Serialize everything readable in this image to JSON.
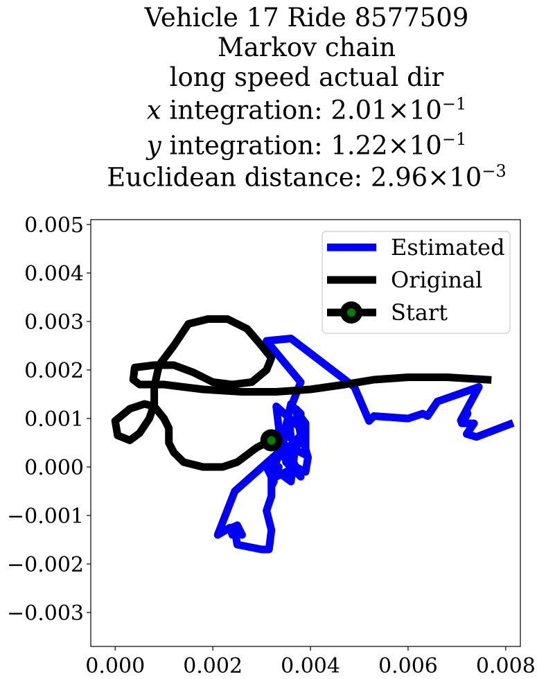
{
  "chart_data": {
    "type": "line",
    "title_lines": [
      "Vehicle 17 Ride 8577509",
      "Markov chain",
      "long speed actual dir",
      "x integration: 2.01 × 10^-1",
      "y integration: 1.22 × 10^-1",
      "Euclidean distance: 2.96 × 10^-3"
    ],
    "title": {
      "line1": "Vehicle 17 Ride 8577509",
      "line2": "Markov chain",
      "line3": "long speed actual dir",
      "line4_var": "x",
      "line4_text": " integration: 2.01",
      "line4_times": "×",
      "line4_base": "10",
      "line4_exp": "−1",
      "line5_var": "y",
      "line5_text": " integration: 1.22",
      "line5_times": "×",
      "line5_base": "10",
      "line5_exp": "−1",
      "line6_text": "Euclidean distance: 2.96",
      "line6_times": "×",
      "line6_base": "10",
      "line6_exp": "−3"
    },
    "xlim": [
      -0.0005,
      0.0083
    ],
    "ylim": [
      -0.0037,
      0.0051
    ],
    "x_ticks": [
      0.0,
      0.002,
      0.004,
      0.006,
      0.008
    ],
    "x_tick_labels": [
      "0.000",
      "0.002",
      "0.004",
      "0.006",
      "0.008"
    ],
    "y_ticks": [
      0.005,
      0.004,
      0.003,
      0.002,
      0.001,
      0.0,
      -0.001,
      -0.002,
      -0.003
    ],
    "y_tick_labels": [
      "0.005",
      "0.004",
      "0.003",
      "0.002",
      "0.001",
      "0.000",
      "−0.001",
      "−0.002",
      "−0.003"
    ],
    "grid": false,
    "legend_position": "top-right",
    "series": [
      {
        "name": "Estimated",
        "color": "#0000ff",
        "points": [
          [
            0.00808,
            0.00088
          ],
          [
            0.0074,
            0.00062
          ],
          [
            0.0072,
            0.00068
          ],
          [
            0.00735,
            0.0009
          ],
          [
            0.0071,
            0.0009
          ],
          [
            0.00722,
            0.0011
          ],
          [
            0.00708,
            0.00096
          ],
          [
            0.00745,
            0.00165
          ],
          [
            0.0066,
            0.00135
          ],
          [
            0.0064,
            0.00105
          ],
          [
            0.0063,
            0.0011
          ],
          [
            0.006,
            0.001
          ],
          [
            0.0053,
            0.00105
          ],
          [
            0.0052,
            0.00095
          ],
          [
            0.0049,
            0.00165
          ],
          [
            0.0036,
            0.00265
          ],
          [
            0.0031,
            0.0026
          ],
          [
            0.0038,
            0.00175
          ],
          [
            0.00355,
            0.0011
          ],
          [
            0.0036,
            0.0006
          ],
          [
            0.0034,
            0.00065
          ],
          [
            0.0033,
            0.00015
          ],
          [
            0.0038,
            0.00065
          ],
          [
            0.0037,
            0.0012
          ],
          [
            0.0038,
            0.0011
          ],
          [
            0.0038,
            0.0008
          ],
          [
            0.0033,
            0.00125
          ],
          [
            0.0034,
            0.0004
          ],
          [
            0.0036,
            0.0013
          ],
          [
            0.0039,
            0.0009
          ],
          [
            0.0039,
            0.00025
          ],
          [
            0.0037,
            0.00035
          ],
          [
            0.0038,
            0.0007
          ],
          [
            0.00395,
            0.0002
          ],
          [
            0.0039,
            -0.0001
          ],
          [
            0.0037,
            0.0
          ],
          [
            0.0035,
            -0.0001
          ],
          [
            0.0033,
            -0.0002
          ],
          [
            0.00335,
            0.0
          ],
          [
            0.0031,
            0.0
          ],
          [
            0.00325,
            -0.0003
          ],
          [
            0.0032,
            -0.0004
          ],
          [
            0.0034,
            0.0006
          ],
          [
            0.0038,
            -0.0002
          ],
          [
            0.0035,
            0.0001
          ],
          [
            0.0037,
            0.0005
          ],
          [
            0.0036,
            -0.0003
          ],
          [
            0.0032,
            0.0
          ],
          [
            0.0032,
            -0.0006
          ],
          [
            0.0031,
            -0.0009
          ],
          [
            0.0032,
            -0.0013
          ],
          [
            0.00315,
            -0.0017
          ],
          [
            0.003,
            -0.0017
          ],
          [
            0.0025,
            -0.0016
          ],
          [
            0.00245,
            -0.0013
          ],
          [
            0.0026,
            -0.0014
          ],
          [
            0.0025,
            -0.0012
          ],
          [
            0.0024,
            -0.00125
          ],
          [
            0.0024,
            -0.0014
          ],
          [
            0.00235,
            -0.00125
          ],
          [
            0.0021,
            -0.0014
          ],
          [
            0.00245,
            -0.0005
          ],
          [
            0.0034,
            0.00035
          ],
          [
            0.0037,
            -0.0001
          ],
          [
            0.0033,
            0.0004
          ],
          [
            0.0032,
            0.00055
          ]
        ]
      },
      {
        "name": "Original",
        "color": "#000000",
        "points": [
          [
            0.0032,
            0.00055
          ],
          [
            0.0029,
            0.0004
          ],
          [
            0.0025,
            0.0001
          ],
          [
            0.0022,
            0.0
          ],
          [
            0.0018,
            0.0
          ],
          [
            0.0014,
            0.0001
          ],
          [
            0.0012,
            0.0003
          ],
          [
            0.0011,
            0.0005
          ],
          [
            0.0011,
            0.0008
          ],
          [
            0.001,
            0.001
          ],
          [
            0.0008,
            0.00125
          ],
          [
            0.0006,
            0.0013
          ],
          [
            0.0003,
            0.0012
          ],
          [
            0.0,
            0.00095
          ],
          [
            5e-05,
            0.00065
          ],
          [
            0.0003,
            0.00055
          ],
          [
            0.0005,
            0.0007
          ],
          [
            0.0007,
            0.001
          ],
          [
            0.0008,
            0.0013
          ],
          [
            0.0008,
            0.00165
          ],
          [
            0.0009,
            0.0021
          ],
          [
            0.0012,
            0.0025
          ],
          [
            0.0015,
            0.00295
          ],
          [
            0.0019,
            0.00305
          ],
          [
            0.0023,
            0.00305
          ],
          [
            0.0027,
            0.00285
          ],
          [
            0.003,
            0.0025
          ],
          [
            0.0032,
            0.00225
          ],
          [
            0.0031,
            0.002
          ],
          [
            0.0028,
            0.00175
          ],
          [
            0.0024,
            0.0017
          ],
          [
            0.002,
            0.00175
          ],
          [
            0.0016,
            0.00195
          ],
          [
            0.0012,
            0.0021
          ],
          [
            0.0008,
            0.0021
          ],
          [
            0.0004,
            0.00205
          ],
          [
            0.00037,
            0.0018
          ],
          [
            0.0005,
            0.0017
          ],
          [
            0.001,
            0.0017
          ],
          [
            0.0018,
            0.0016
          ],
          [
            0.0026,
            0.00155
          ],
          [
            0.0033,
            0.00155
          ],
          [
            0.004,
            0.0016
          ],
          [
            0.0047,
            0.0017
          ],
          [
            0.0053,
            0.0018
          ],
          [
            0.006,
            0.00185
          ],
          [
            0.0068,
            0.00185
          ],
          [
            0.00763,
            0.0018
          ]
        ]
      }
    ],
    "start": {
      "name": "Start",
      "x": 0.0032,
      "y": 0.00055,
      "outer_color": "#000000",
      "inner_color": "#008000"
    },
    "legend": [
      {
        "label": "Estimated",
        "color": "#0000ff",
        "marker": false
      },
      {
        "label": "Original",
        "color": "#000000",
        "marker": false
      },
      {
        "label": "Start",
        "color": "#000000",
        "marker": true,
        "marker_color": "#008000"
      }
    ]
  }
}
